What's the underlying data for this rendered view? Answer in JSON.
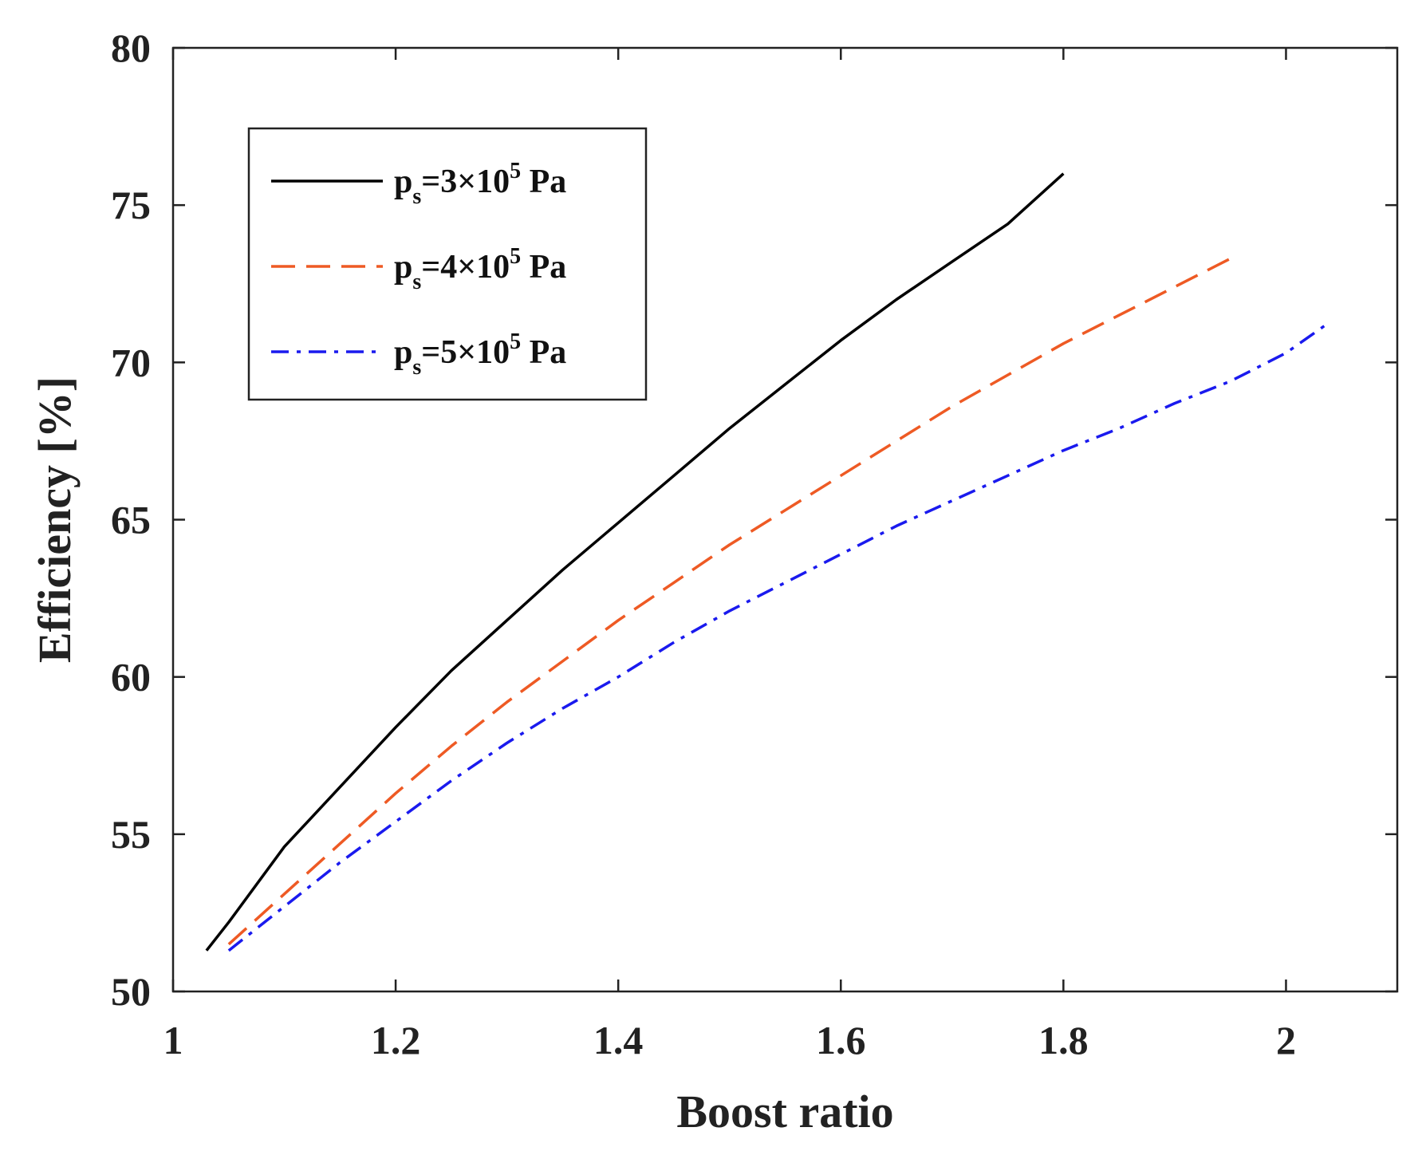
{
  "chart_data": {
    "type": "line",
    "title": "",
    "xlabel": "Boost ratio",
    "ylabel": "Efficiency [%]",
    "xlim": [
      1,
      2.1
    ],
    "ylim": [
      50,
      80
    ],
    "xticks": [
      1,
      1.2,
      1.4,
      1.6,
      1.8,
      2
    ],
    "xtick_labels": [
      "1",
      "1.2",
      "1.4",
      "1.6",
      "1.8",
      "2"
    ],
    "yticks": [
      50,
      55,
      60,
      65,
      70,
      75,
      80
    ],
    "ytick_labels": [
      "50",
      "55",
      "60",
      "65",
      "70",
      "75",
      "80"
    ],
    "grid": false,
    "legend_position": "top-left",
    "series": [
      {
        "name": "ps=3×10^5 Pa",
        "legend": {
          "base": "p",
          "sub": "s",
          "mid": "=3×10",
          "sup": "5",
          "tail": " Pa"
        },
        "color": "#000000",
        "style": "solid",
        "x": [
          1.03,
          1.05,
          1.1,
          1.15,
          1.2,
          1.25,
          1.3,
          1.35,
          1.4,
          1.45,
          1.5,
          1.55,
          1.6,
          1.65,
          1.7,
          1.75,
          1.8
        ],
        "y": [
          51.3,
          52.2,
          54.6,
          56.5,
          58.4,
          60.2,
          61.8,
          63.4,
          64.9,
          66.4,
          67.9,
          69.3,
          70.7,
          72.0,
          73.2,
          74.4,
          76.0
        ]
      },
      {
        "name": "ps=4×10^5 Pa",
        "legend": {
          "base": "p",
          "sub": "s",
          "mid": "=4×10",
          "sup": "5",
          "tail": " Pa"
        },
        "color": "#ee5a24",
        "style": "dashed",
        "x": [
          1.05,
          1.1,
          1.15,
          1.2,
          1.25,
          1.3,
          1.35,
          1.4,
          1.45,
          1.5,
          1.55,
          1.6,
          1.65,
          1.7,
          1.75,
          1.8,
          1.85,
          1.9,
          1.95
        ],
        "y": [
          51.5,
          53.1,
          54.7,
          56.3,
          57.8,
          59.2,
          60.5,
          61.8,
          63.0,
          64.2,
          65.3,
          66.4,
          67.5,
          68.6,
          69.6,
          70.6,
          71.5,
          72.4,
          73.3
        ]
      },
      {
        "name": "ps=5×10^5 Pa",
        "legend": {
          "base": "p",
          "sub": "s",
          "mid": "=5×10",
          "sup": "5",
          "tail": " Pa"
        },
        "color": "#1a1aee",
        "style": "dashdot",
        "x": [
          1.05,
          1.1,
          1.15,
          1.2,
          1.25,
          1.3,
          1.35,
          1.4,
          1.45,
          1.5,
          1.55,
          1.6,
          1.65,
          1.7,
          1.75,
          1.8,
          1.85,
          1.9,
          1.95,
          2.0,
          2.04
        ],
        "y": [
          51.3,
          52.7,
          54.1,
          55.4,
          56.7,
          57.9,
          59.0,
          60.0,
          61.1,
          62.1,
          63.0,
          63.9,
          64.8,
          65.6,
          66.4,
          67.2,
          67.9,
          68.7,
          69.4,
          70.3,
          71.3
        ]
      }
    ]
  }
}
